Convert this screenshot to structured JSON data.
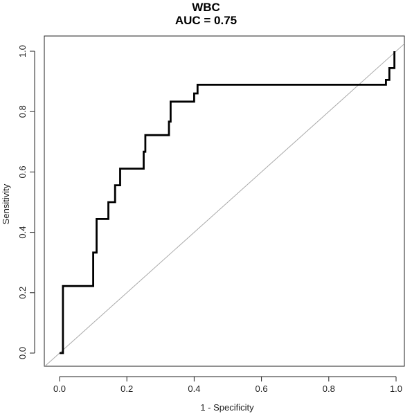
{
  "chart_data": {
    "type": "line",
    "title": "WBC",
    "subtitle": "AUC = 0.75",
    "xlabel": "1 - Specificity",
    "ylabel": "Sensitivity",
    "xlim": [
      0,
      1
    ],
    "ylim": [
      0,
      1
    ],
    "x_ticks": [
      "0.0",
      "0.2",
      "0.4",
      "0.6",
      "0.8",
      "1.0"
    ],
    "y_ticks": [
      "0.0",
      "0.2",
      "0.4",
      "0.6",
      "0.8",
      "1.0"
    ],
    "grid": false,
    "series": [
      {
        "line_color": "#000000",
        "x": [
          0.0,
          0.01,
          0.01,
          0.1,
          0.1,
          0.11,
          0.11,
          0.145,
          0.145,
          0.165,
          0.165,
          0.18,
          0.18,
          0.25,
          0.25,
          0.255,
          0.255,
          0.325,
          0.325,
          0.33,
          0.33,
          0.4,
          0.4,
          0.41,
          0.41,
          0.97,
          0.97,
          0.98,
          0.98,
          0.995,
          0.995
        ],
        "y": [
          0.0,
          0.0,
          0.222,
          0.222,
          0.333,
          0.333,
          0.444,
          0.444,
          0.5,
          0.5,
          0.556,
          0.556,
          0.611,
          0.611,
          0.667,
          0.667,
          0.722,
          0.722,
          0.767,
          0.767,
          0.833,
          0.833,
          0.86,
          0.86,
          0.889,
          0.889,
          0.905,
          0.905,
          0.944,
          0.944,
          1.0
        ]
      },
      {
        "line_color": "#aaaaaa",
        "x": [
          -0.05,
          1.05
        ],
        "y": [
          -0.05,
          1.05
        ]
      }
    ]
  }
}
